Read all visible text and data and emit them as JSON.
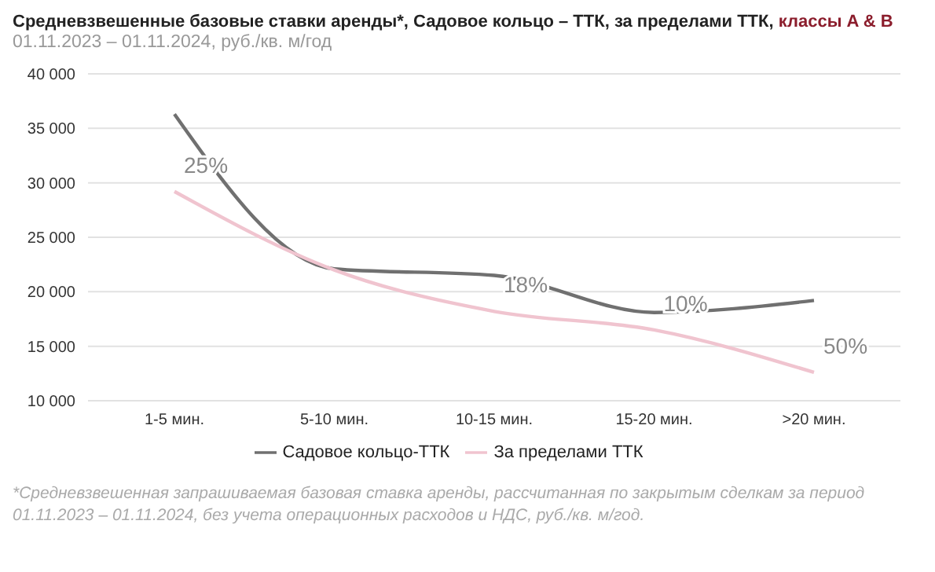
{
  "chart_data": {
    "type": "line",
    "title": "Средневзвешенные базовые ставки аренды*, Садовое кольцо – ТТК, за пределами ТТК, классы A & B",
    "subtitle": "01.11.2023 – 01.11.2024, руб./кв. м/год",
    "categories": [
      "1-5 мин.",
      "5-10 мин.",
      "10-15 мин.",
      "15-20 мин.",
      ">20 мин."
    ],
    "series": [
      {
        "name": "Садовое кольцо-ТТК",
        "color": "#707070",
        "values": [
          36300,
          22100,
          21500,
          18100,
          19200
        ]
      },
      {
        "name": "За пределами ТТК",
        "color": "#f0c4cf",
        "values": [
          29200,
          22000,
          18200,
          16500,
          12600
        ]
      }
    ],
    "ylim": [
      10000,
      40000
    ],
    "yticks": [
      {
        "value": 10000,
        "label": "10 000"
      },
      {
        "value": 15000,
        "label": "15 000"
      },
      {
        "value": 20000,
        "label": "20 000"
      },
      {
        "value": 25000,
        "label": "25 000"
      },
      {
        "value": 30000,
        "label": "30 000"
      },
      {
        "value": 35000,
        "label": "35 000"
      },
      {
        "value": 40000,
        "label": "40 000"
      }
    ],
    "grid": "y",
    "legend": "bottom",
    "marker": "none",
    "line_style": "solid",
    "annotations": [
      {
        "text": "25%",
        "x": "1-5 мин.",
        "y": 29200
      },
      {
        "text": "18%",
        "x": "10-15 мин.",
        "y": 18200
      },
      {
        "text": "10%",
        "x": "15-20 мин.",
        "y": 16500
      },
      {
        "text": "50%",
        "x": ">20 мин.",
        "y": 12600
      },
      "*Средневзвешенная запрашиваемая базовая ставка аренды, рассчитанная по закрытым сделкам за период 01.11.2023 – 01.11.2024, без учета операционных расходов и НДС, руб./кв. м/год."
    ]
  }
}
